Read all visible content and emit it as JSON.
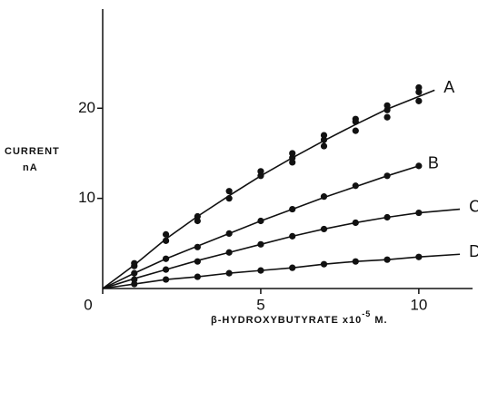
{
  "chart_data": {
    "type": "scatter",
    "ylabel": [
      "CURRENT",
      "nA"
    ],
    "xlabel": [
      "β-HYDROXYBUTYRATE x10",
      "-5",
      " M."
    ],
    "xlim": [
      0,
      11.7
    ],
    "ylim": [
      0,
      31
    ],
    "xticks": [
      0,
      5,
      10
    ],
    "yticks": [
      0,
      10,
      20
    ],
    "color": "#111111",
    "series": [
      {
        "name": "A",
        "x": [
          1,
          1,
          2,
          2,
          3,
          3,
          4,
          4,
          5,
          5,
          6,
          6,
          6,
          7,
          7,
          7,
          8,
          8,
          8,
          9,
          9,
          9,
          10,
          10,
          10
        ],
        "values": [
          2.5,
          2.8,
          5.3,
          6,
          7.5,
          8,
          10,
          10.8,
          12.5,
          13,
          14,
          14.5,
          15,
          15.8,
          16.5,
          17,
          17.5,
          18.5,
          18.8,
          19,
          19.8,
          20.3,
          20.8,
          21.8,
          22.3
        ],
        "curve_x": [
          0,
          1,
          2,
          3,
          4,
          5,
          6,
          7,
          8,
          9,
          10,
          10.5
        ],
        "curve_y": [
          0,
          2.6,
          5.5,
          8,
          10.3,
          12.5,
          14.5,
          16.4,
          18.2,
          19.9,
          21.3,
          22
        ]
      },
      {
        "name": "B",
        "x": [
          1,
          2,
          3,
          4,
          5,
          6,
          7,
          8,
          9,
          10
        ],
        "values": [
          1.7,
          3.3,
          4.6,
          6.1,
          7.5,
          8.8,
          10.2,
          11.4,
          12.5,
          13.6
        ],
        "curve_x": [
          0,
          1,
          2,
          3,
          4,
          5,
          6,
          7,
          8,
          9,
          10
        ],
        "curve_y": [
          0,
          1.7,
          3.3,
          4.7,
          6.1,
          7.5,
          8.8,
          10.1,
          11.3,
          12.5,
          13.6
        ]
      },
      {
        "name": "C",
        "x": [
          1,
          2,
          3,
          4,
          5,
          6,
          7,
          8,
          9,
          10
        ],
        "values": [
          1.0,
          2.1,
          3.0,
          4.0,
          4.9,
          5.8,
          6.6,
          7.3,
          7.9,
          8.4
        ],
        "curve_x": [
          0,
          1,
          2,
          3,
          4,
          5,
          6,
          7,
          8,
          9,
          10,
          11.3
        ],
        "curve_y": [
          0,
          1.1,
          2.1,
          3.1,
          4.0,
          4.9,
          5.8,
          6.6,
          7.3,
          7.9,
          8.4,
          8.8
        ]
      },
      {
        "name": "D",
        "x": [
          1,
          2,
          3,
          4,
          5,
          6,
          7,
          8,
          9,
          10
        ],
        "values": [
          0.5,
          1.0,
          1.3,
          1.7,
          2.0,
          2.3,
          2.7,
          3.0,
          3.2,
          3.5
        ],
        "curve_x": [
          0,
          1,
          2,
          3,
          4,
          5,
          6,
          7,
          8,
          9,
          10,
          11.3
        ],
        "curve_y": [
          0,
          0.5,
          1.0,
          1.3,
          1.7,
          2.0,
          2.3,
          2.7,
          3.0,
          3.2,
          3.5,
          3.8
        ]
      }
    ]
  }
}
